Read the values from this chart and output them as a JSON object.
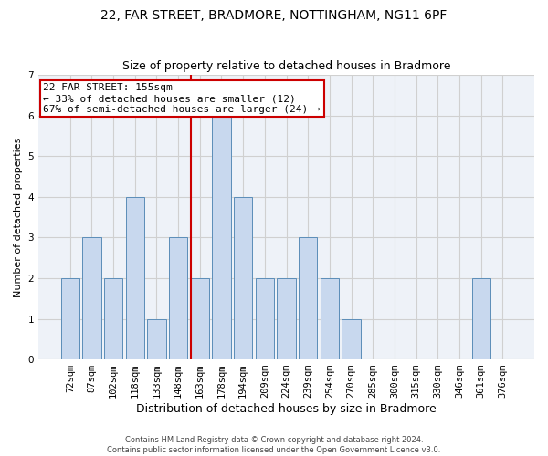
{
  "title": "22, FAR STREET, BRADMORE, NOTTINGHAM, NG11 6PF",
  "subtitle": "Size of property relative to detached houses in Bradmore",
  "xlabel": "Distribution of detached houses by size in Bradmore",
  "ylabel": "Number of detached properties",
  "categories": [
    "72sqm",
    "87sqm",
    "102sqm",
    "118sqm",
    "133sqm",
    "148sqm",
    "163sqm",
    "178sqm",
    "194sqm",
    "209sqm",
    "224sqm",
    "239sqm",
    "254sqm",
    "270sqm",
    "285sqm",
    "300sqm",
    "315sqm",
    "330sqm",
    "346sqm",
    "361sqm",
    "376sqm"
  ],
  "values": [
    2,
    3,
    2,
    4,
    1,
    3,
    2,
    6,
    4,
    2,
    2,
    3,
    2,
    1,
    0,
    0,
    0,
    0,
    0,
    2,
    0
  ],
  "bar_color": "#c8d8ee",
  "bar_edge_color": "#5b8db8",
  "subject_line_color": "#cc0000",
  "annotation_text": "22 FAR STREET: 155sqm\n← 33% of detached houses are smaller (12)\n67% of semi-detached houses are larger (24) →",
  "annotation_box_color": "#ffffff",
  "annotation_box_edge": "#cc0000",
  "ylim": [
    0,
    7
  ],
  "yticks": [
    0,
    1,
    2,
    3,
    4,
    5,
    6,
    7
  ],
  "grid_color": "#d0d0d0",
  "background_color": "#eef2f8",
  "footer_text": "Contains HM Land Registry data © Crown copyright and database right 2024.\nContains public sector information licensed under the Open Government Licence v3.0.",
  "title_fontsize": 10,
  "subtitle_fontsize": 9,
  "xlabel_fontsize": 9,
  "ylabel_fontsize": 8,
  "tick_fontsize": 7.5,
  "annotation_fontsize": 8,
  "footer_fontsize": 6
}
